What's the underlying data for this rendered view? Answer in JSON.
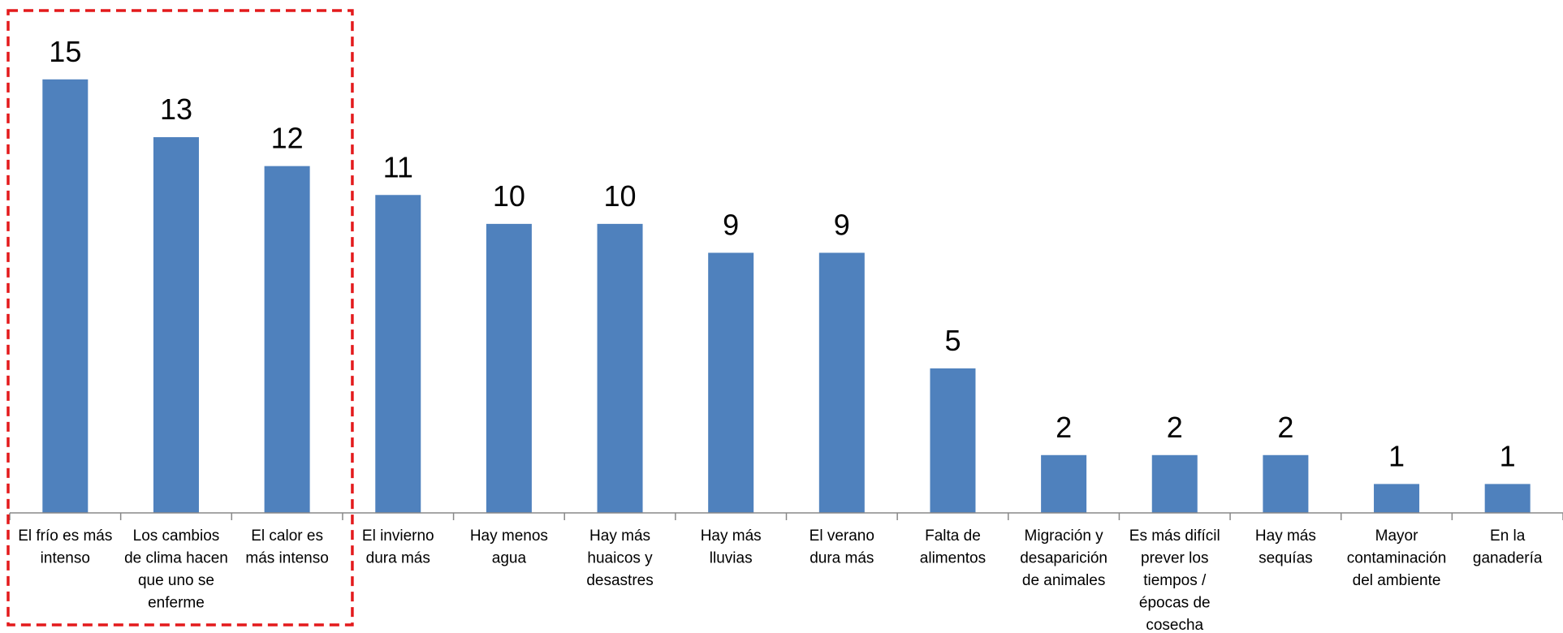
{
  "chart_data": {
    "type": "bar",
    "title": "",
    "xlabel": "",
    "ylabel": "",
    "ylim": [
      0,
      15.5
    ],
    "grid": false,
    "legend": "none",
    "categories": [
      "El frío es más intenso",
      "Los cambios de clima hacen que uno se enferme",
      "El calor es más intenso",
      "El invierno dura más",
      "Hay menos agua",
      "Hay más huaicos y desastres",
      "Hay más lluvias",
      "El verano dura más",
      "Falta de alimentos",
      "Migración y desaparición de animales",
      "Es más difícil prever los tiempos / épocas de cosecha",
      "Hay más sequías",
      "Mayor contaminación del ambiente",
      "En la ganadería"
    ],
    "category_lines": [
      [
        "El frío es más",
        "intenso"
      ],
      [
        "Los cambios",
        "de clima hacen",
        "que uno se",
        "enferme"
      ],
      [
        "El calor es",
        "más intenso"
      ],
      [
        "El invierno",
        "dura más"
      ],
      [
        "Hay menos",
        "agua"
      ],
      [
        "Hay más",
        "huaicos y",
        "desastres"
      ],
      [
        "Hay más",
        "lluvias"
      ],
      [
        "El verano",
        "dura más"
      ],
      [
        "Falta de",
        "alimentos"
      ],
      [
        "Migración y",
        "desaparición",
        "de animales"
      ],
      [
        "Es más difícil",
        "prever los",
        "tiempos /",
        "épocas de",
        "cosecha"
      ],
      [
        "Hay más",
        "sequías"
      ],
      [
        "Mayor",
        "contaminación",
        "del ambiente"
      ],
      [
        "En la",
        "ganadería"
      ]
    ],
    "values": [
      15,
      13,
      12,
      11,
      10,
      10,
      9,
      9,
      5,
      2,
      2,
      2,
      1,
      1
    ],
    "data_labels": [
      "15",
      "13",
      "12",
      "11",
      "10",
      "10",
      "9",
      "9",
      "5",
      "2",
      "2",
      "2",
      "1",
      "1"
    ],
    "bar_color": "#4F81BD",
    "highlight": {
      "from_index": 0,
      "to_index": 2,
      "color": "#E31A1C",
      "style": "dashed"
    }
  }
}
